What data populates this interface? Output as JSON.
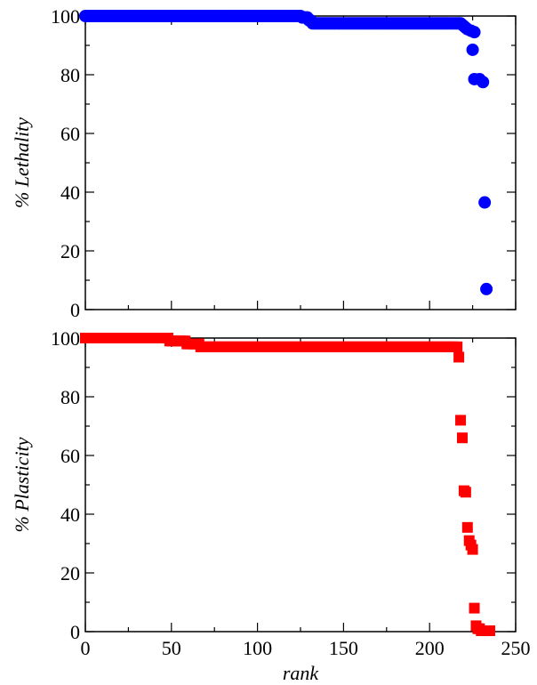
{
  "chart_data": [
    {
      "type": "scatter",
      "title": "",
      "xlabel": "",
      "ylabel": "% Lethality",
      "xlim": [
        0,
        250
      ],
      "ylim": [
        0,
        100
      ],
      "x_ticks": [
        0,
        50,
        100,
        150,
        200,
        250
      ],
      "y_ticks": [
        0,
        20,
        40,
        60,
        80,
        100
      ],
      "show_x_tick_labels": false,
      "grid": false,
      "marker": "circle",
      "color": "#0000ff",
      "series": [
        {
          "points": [
            {
              "x0": 0,
              "x1": 125,
              "y": 100
            },
            {
              "x0": 126,
              "x1": 129,
              "y": 99.5
            },
            {
              "x0": 130,
              "x1": 131,
              "y": 98.5
            },
            {
              "x0": 132,
              "x1": 218,
              "y": 97.5
            },
            {
              "x0": 219,
              "x1": 219,
              "y": 97
            },
            {
              "x0": 220,
              "x1": 220,
              "y": 96.5
            },
            {
              "x0": 221,
              "x1": 221,
              "y": 96
            },
            {
              "x0": 222,
              "x1": 222,
              "y": 95.5
            },
            {
              "x0": 224,
              "x1": 224,
              "y": 95
            },
            {
              "x0": 226,
              "x1": 226,
              "y": 94.5
            },
            {
              "x0": 225,
              "x1": 225,
              "y": 88.5
            },
            {
              "x0": 226,
              "x1": 226,
              "y": 78.5
            },
            {
              "x0": 229,
              "x1": 229,
              "y": 78.5
            },
            {
              "x0": 231,
              "x1": 231,
              "y": 77.5
            },
            {
              "x0": 232,
              "x1": 232,
              "y": 36.5
            },
            {
              "x0": 233,
              "x1": 233,
              "y": 7
            }
          ]
        }
      ]
    },
    {
      "type": "scatter",
      "title": "",
      "xlabel": "rank",
      "ylabel": "% Plasticity",
      "xlim": [
        0,
        250
      ],
      "ylim": [
        0,
        100
      ],
      "x_ticks": [
        0,
        50,
        100,
        150,
        200,
        250
      ],
      "y_ticks": [
        0,
        20,
        40,
        60,
        80,
        100
      ],
      "show_x_tick_labels": true,
      "grid": false,
      "marker": "square",
      "color": "#ff0000",
      "series": [
        {
          "points": [
            {
              "x0": 0,
              "x1": 48,
              "y": 100
            },
            {
              "x0": 49,
              "x1": 58,
              "y": 99
            },
            {
              "x0": 59,
              "x1": 66,
              "y": 98
            },
            {
              "x0": 67,
              "x1": 216,
              "y": 97
            },
            {
              "x0": 217,
              "x1": 217,
              "y": 93.5
            },
            {
              "x0": 218,
              "x1": 218,
              "y": 72
            },
            {
              "x0": 219,
              "x1": 219,
              "y": 66
            },
            {
              "x0": 220,
              "x1": 220,
              "y": 48
            },
            {
              "x0": 221,
              "x1": 221,
              "y": 47.5
            },
            {
              "x0": 222,
              "x1": 222,
              "y": 35.5
            },
            {
              "x0": 223,
              "x1": 223,
              "y": 31
            },
            {
              "x0": 224,
              "x1": 224,
              "y": 29.5
            },
            {
              "x0": 225,
              "x1": 225,
              "y": 28
            },
            {
              "x0": 226,
              "x1": 226,
              "y": 8
            },
            {
              "x0": 227,
              "x1": 227,
              "y": 2
            },
            {
              "x0": 228,
              "x1": 228,
              "y": 1
            },
            {
              "x0": 229,
              "x1": 229,
              "y": 1
            },
            {
              "x0": 230,
              "x1": 235,
              "y": 0.3
            }
          ]
        }
      ]
    }
  ]
}
